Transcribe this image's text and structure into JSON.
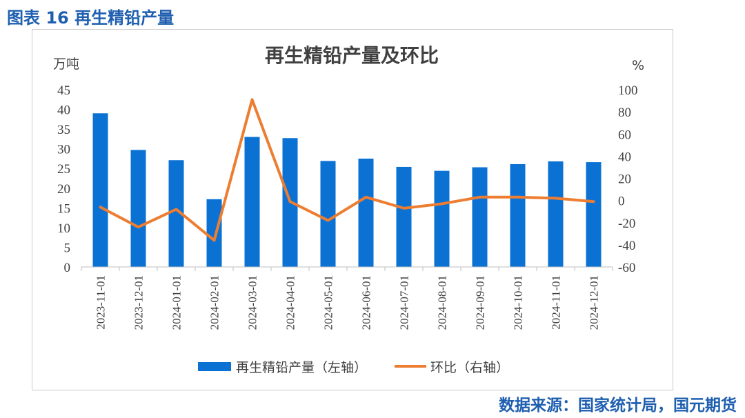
{
  "figure_title": "图表 16 再生精铅产量",
  "source_note": "数据来源：国家统计局，国元期货",
  "chart_data": {
    "type": "bar+line",
    "title": "再生精铅产量及环比",
    "y_left_unit": "万吨",
    "y_right_unit": "%",
    "y_left_range": [
      0,
      45
    ],
    "y_left_ticks": [
      0,
      5,
      10,
      15,
      20,
      25,
      30,
      35,
      40,
      45
    ],
    "y_right_range": [
      -60,
      100
    ],
    "y_right_ticks": [
      -60,
      -40,
      -20,
      0,
      20,
      40,
      60,
      80,
      100
    ],
    "categories": [
      "2023-11-01",
      "2023-12-01",
      "2024-01-01",
      "2024-02-01",
      "2024-03-01",
      "2024-04-01",
      "2024-05-01",
      "2024-06-01",
      "2024-07-01",
      "2024-08-01",
      "2024-09-01",
      "2024-10-01",
      "2024-11-01",
      "2024-12-01"
    ],
    "series": [
      {
        "name": "再生精铅产量（左轴）",
        "type": "bar",
        "axis": "left",
        "color": "#0b72d4",
        "values": [
          39.0,
          29.7,
          27.1,
          17.2,
          33.0,
          32.7,
          26.9,
          27.5,
          25.4,
          24.4,
          25.3,
          26.1,
          26.8,
          26.6
        ]
      },
      {
        "name": "环比（右轴）",
        "type": "line",
        "axis": "right",
        "color": "#ed7d31",
        "values": [
          -6,
          -24,
          -8,
          -36,
          91,
          -1,
          -18,
          3,
          -7,
          -3,
          3,
          3,
          2,
          -1
        ]
      }
    ],
    "legend_position": "bottom",
    "grid": false
  }
}
